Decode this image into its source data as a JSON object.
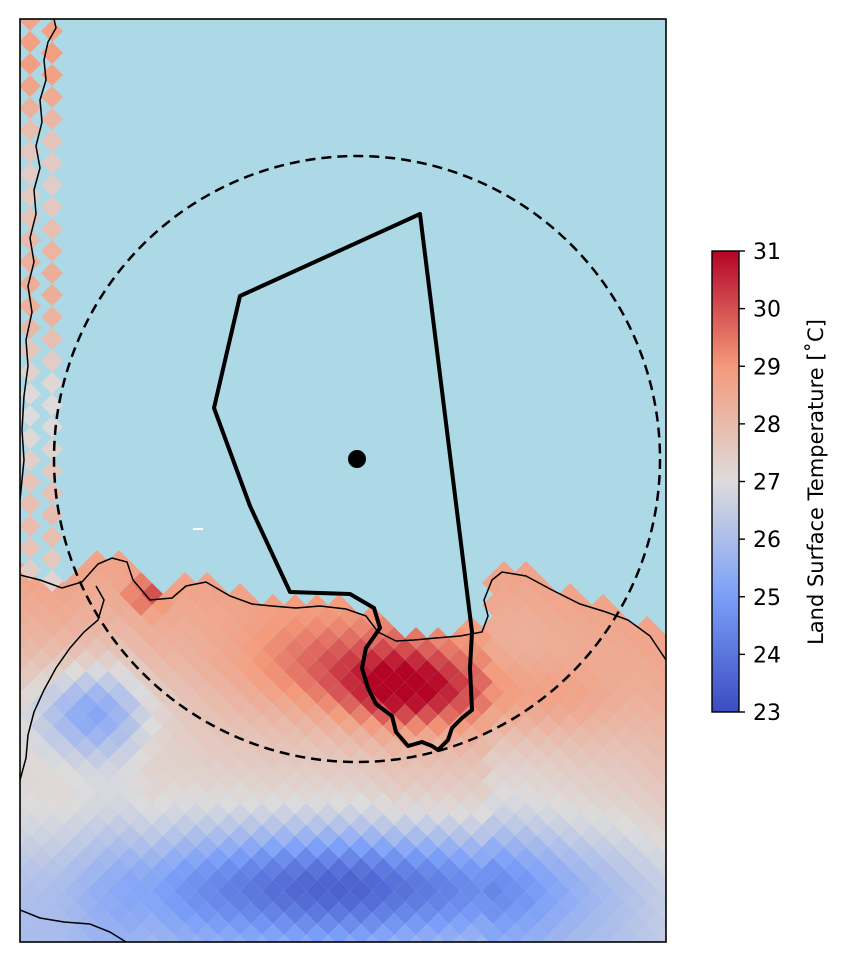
{
  "colors": {
    "sea": "#add8e6",
    "coastline": "#000000",
    "outline": "#000000",
    "colormap": "coolwarm"
  },
  "colorbar": {
    "label": "Land Surface Temperature [˚C]",
    "min": 23,
    "max": 31,
    "ticks": [
      "23",
      "24",
      "25",
      "26",
      "27",
      "28",
      "29",
      "30",
      "31"
    ]
  },
  "chart_data": {
    "type": "heatmap",
    "title": "",
    "variable": "Land Surface Temperature",
    "units": "˚C",
    "value_range": [
      23,
      31
    ],
    "features": [
      "coastline",
      "domain outline polygon",
      "dashed circle",
      "center point"
    ],
    "approximate_values": {
      "hottest_patch": 31,
      "southern_cold_band": 23,
      "western_cool_patch": 24.5,
      "coastal_band": 28.5
    }
  }
}
